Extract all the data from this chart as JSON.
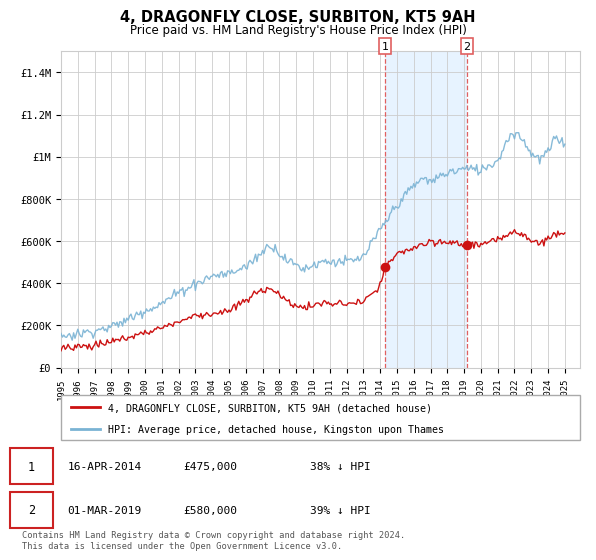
{
  "title": "4, DRAGONFLY CLOSE, SURBITON, KT5 9AH",
  "subtitle": "Price paid vs. HM Land Registry's House Price Index (HPI)",
  "title_fontsize": 10.5,
  "subtitle_fontsize": 8.5,
  "ylim": [
    0,
    1500000
  ],
  "yticks": [
    0,
    200000,
    400000,
    600000,
    800000,
    1000000,
    1200000,
    1400000
  ],
  "ytick_labels": [
    "£0",
    "£200K",
    "£400K",
    "£600K",
    "£800K",
    "£1M",
    "£1.2M",
    "£1.4M"
  ],
  "xlim_start": 1995.0,
  "xlim_end": 2025.9,
  "hpi_color": "#7ab3d4",
  "price_color": "#cc1111",
  "sale1_date": 2014.29,
  "sale1_price": 475000,
  "sale2_date": 2019.17,
  "sale2_price": 580000,
  "legend_line1": "4, DRAGONFLY CLOSE, SURBITON, KT5 9AH (detached house)",
  "legend_line2": "HPI: Average price, detached house, Kingston upon Thames",
  "table_row1": [
    "1",
    "16-APR-2014",
    "£475,000",
    "38% ↓ HPI"
  ],
  "table_row2": [
    "2",
    "01-MAR-2019",
    "£580,000",
    "39% ↓ HPI"
  ],
  "footnote": "Contains HM Land Registry data © Crown copyright and database right 2024.\nThis data is licensed under the Open Government Licence v3.0.",
  "bg_color": "#ffffff",
  "grid_color": "#cccccc",
  "vline_color": "#e06060",
  "highlight_color": "#ddeeff"
}
